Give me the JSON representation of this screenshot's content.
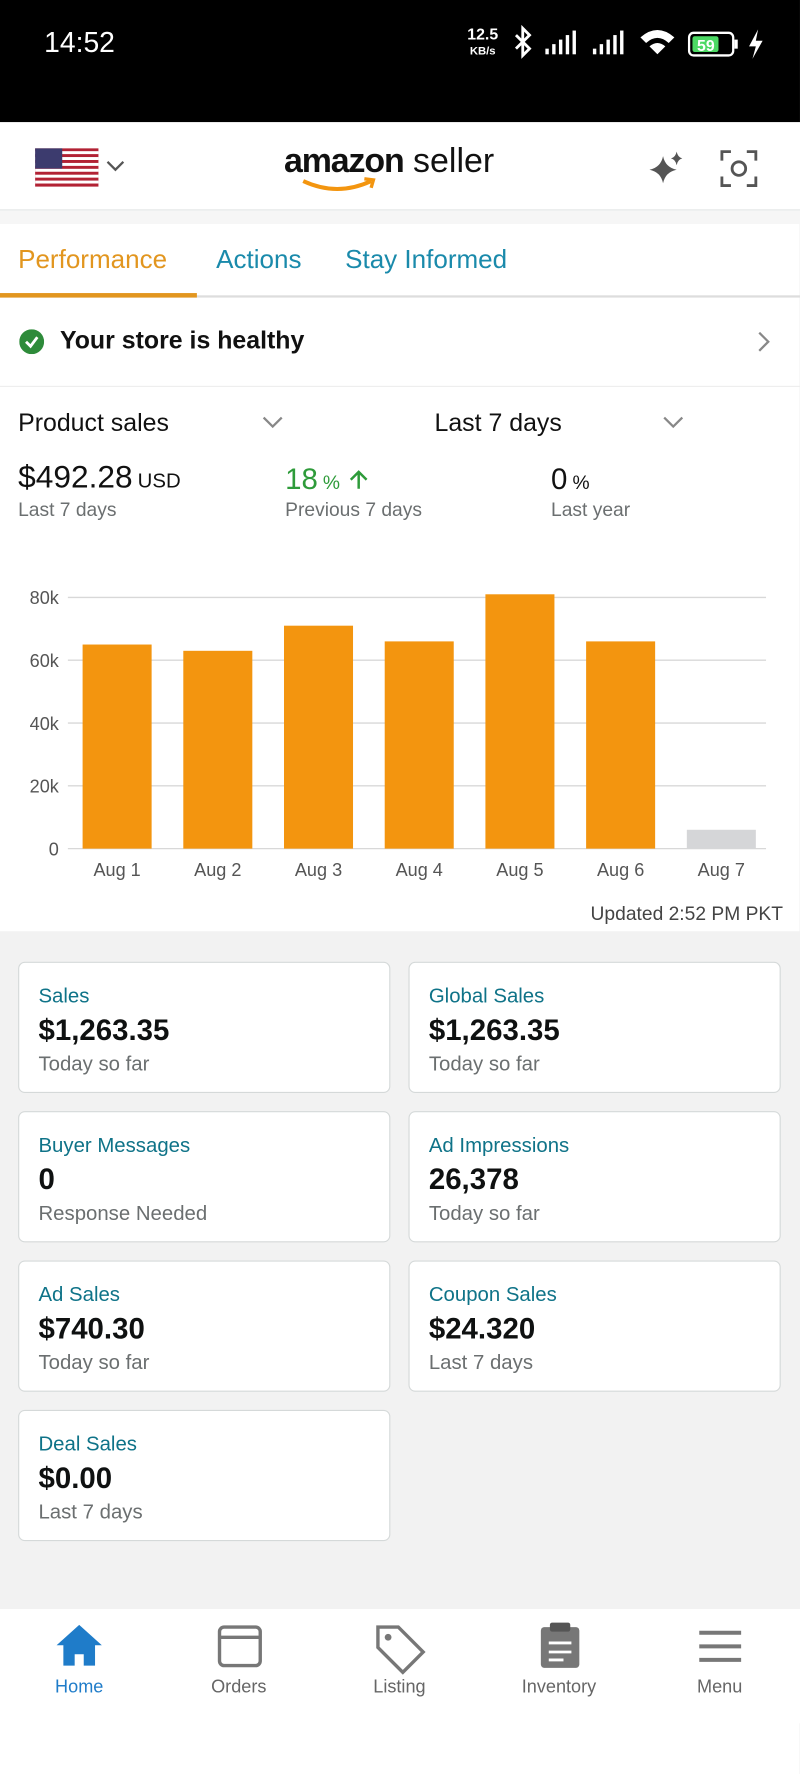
{
  "status_bar": {
    "time": "14:52",
    "network_speed": "12.5",
    "network_unit": "KB/s",
    "battery": "59"
  },
  "header": {
    "logo_primary": "amazon",
    "logo_secondary": "seller"
  },
  "tabs": [
    "Performance",
    "Actions",
    "Stay Informed"
  ],
  "store_status": "Your store is healthy",
  "selectors": {
    "metric": "Product sales",
    "period": "Last 7 days"
  },
  "summary": [
    {
      "value": "$492.28",
      "unit": "USD",
      "caption": "Last 7 days"
    },
    {
      "value": "18",
      "unit": "%",
      "caption": "Previous 7 days"
    },
    {
      "value": "0",
      "unit": "%",
      "caption": "Last year"
    }
  ],
  "chart_data": {
    "type": "bar",
    "categories": [
      "Aug 1",
      "Aug 2",
      "Aug 3",
      "Aug 4",
      "Aug 5",
      "Aug 6",
      "Aug 7"
    ],
    "values": [
      65000,
      63000,
      71000,
      66000,
      81000,
      66000,
      6000
    ],
    "colors": [
      "#f3950f",
      "#f3950f",
      "#f3950f",
      "#f3950f",
      "#f3950f",
      "#f3950f",
      "#d5d6d8"
    ],
    "ylim": [
      0,
      80000
    ],
    "yticks": [
      0,
      {
        "value": 20000,
        "label": "20k"
      },
      {
        "value": 40000,
        "label": "40k"
      },
      {
        "value": 60000,
        "label": "60k"
      },
      {
        "value": 80000,
        "label": "80k"
      }
    ],
    "grid": true
  },
  "updated": "Updated 2:52 PM PKT",
  "cards": [
    {
      "label": "Sales",
      "value": "$1,263.35",
      "caption": "Today so far"
    },
    {
      "label": "Global Sales",
      "value": "$1,263.35",
      "caption": "Today so far"
    },
    {
      "label": "Buyer Messages",
      "value": "0",
      "caption": "Response Needed"
    },
    {
      "label": "Ad Impressions",
      "value": "26,378",
      "caption": "Today so far"
    },
    {
      "label": "Ad Sales",
      "value": "$740.30",
      "caption": "Today so far"
    },
    {
      "label": "Coupon Sales",
      "value": "$24.320",
      "caption": "Last 7 days"
    },
    {
      "label": "Deal Sales",
      "value": "$0.00",
      "caption": "Last 7 days"
    }
  ],
  "nav": [
    "Home",
    "Orders",
    "Listing",
    "Inventory",
    "Menu"
  ]
}
